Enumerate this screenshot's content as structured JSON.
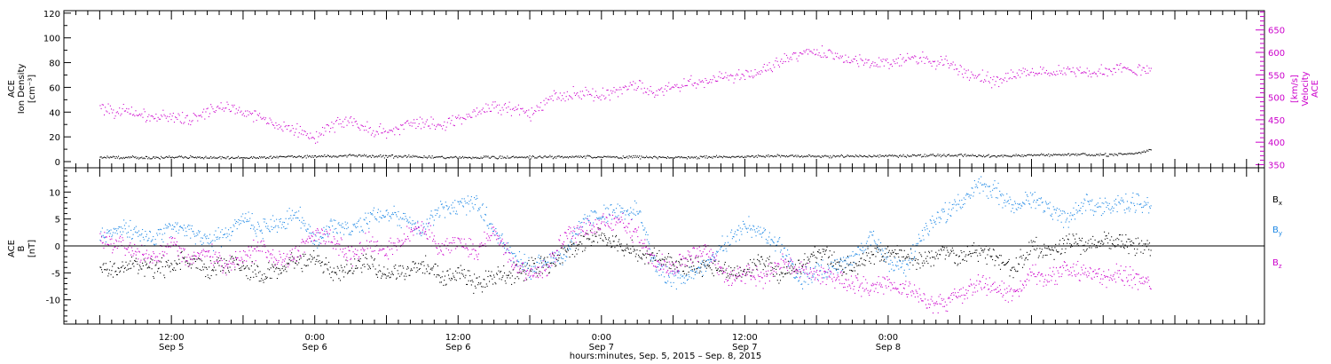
{
  "chart_data": [
    {
      "type": "scatter",
      "ylabel_lines": [
        "ACE",
        "Ion Density",
        "[cm⁻³]"
      ],
      "y2label_lines": [
        "ACE",
        "Velocity",
        "[km/s]"
      ],
      "ylim": [
        -5,
        122
      ],
      "y2lim": [
        343,
        693
      ],
      "yticks": [
        0,
        20,
        40,
        60,
        80,
        100,
        120
      ],
      "y2ticks": [
        350,
        400,
        450,
        500,
        550,
        600,
        650
      ],
      "series": [
        {
          "axis": "right",
          "color": "#cc00cc",
          "points": [
            [
              0,
              480
            ],
            [
              3,
              470
            ],
            [
              6,
              465
            ],
            [
              9,
              455
            ],
            [
              12,
              460
            ],
            [
              15,
              450
            ],
            [
              18,
              470
            ],
            [
              21,
              480
            ],
            [
              24,
              470
            ],
            [
              27,
              455
            ],
            [
              30,
              440
            ],
            [
              33,
              425
            ],
            [
              36,
              410
            ],
            [
              39,
              440
            ],
            [
              42,
              450
            ],
            [
              45,
              430
            ],
            [
              48,
              420
            ],
            [
              51,
              440
            ],
            [
              54,
              445
            ],
            [
              57,
              435
            ],
            [
              60,
              455
            ],
            [
              63,
              470
            ],
            [
              66,
              480
            ],
            [
              69,
              475
            ],
            [
              72,
              465
            ],
            [
              75,
              500
            ],
            [
              78,
              505
            ],
            [
              81,
              510
            ],
            [
              84,
              505
            ],
            [
              87,
              520
            ],
            [
              90,
              530
            ],
            [
              93,
              510
            ],
            [
              96,
              525
            ],
            [
              99,
              535
            ],
            [
              102,
              540
            ],
            [
              105,
              545
            ],
            [
              108,
              550
            ],
            [
              111,
              560
            ],
            [
              114,
              580
            ],
            [
              117,
              600
            ],
            [
              120,
              605
            ],
            [
              123,
              595
            ],
            [
              126,
              580
            ],
            [
              129,
              580
            ],
            [
              132,
              575
            ],
            [
              135,
              590
            ],
            [
              138,
              585
            ],
            [
              141,
              580
            ],
            [
              144,
              560
            ],
            [
              147,
              550
            ],
            [
              150,
              535
            ],
            [
              153,
              550
            ],
            [
              156,
              560
            ],
            [
              159,
              555
            ],
            [
              162,
              565
            ],
            [
              165,
              555
            ],
            [
              168,
              560
            ],
            [
              171,
              565
            ],
            [
              174,
              560
            ],
            [
              176,
              565
            ]
          ]
        },
        {
          "axis": "left",
          "color": "#000000",
          "points": [
            [
              0,
              4
            ],
            [
              6,
              3.5
            ],
            [
              12,
              4
            ],
            [
              18,
              3.8
            ],
            [
              24,
              3.5
            ],
            [
              30,
              4
            ],
            [
              36,
              4.5
            ],
            [
              42,
              5
            ],
            [
              48,
              4.6
            ],
            [
              54,
              4
            ],
            [
              60,
              3.7
            ],
            [
              66,
              3.8
            ],
            [
              72,
              3.9
            ],
            [
              78,
              4.2
            ],
            [
              84,
              4
            ],
            [
              90,
              3.8
            ],
            [
              96,
              3.6
            ],
            [
              102,
              4
            ],
            [
              108,
              4.5
            ],
            [
              114,
              5
            ],
            [
              120,
              4.4
            ],
            [
              126,
              4.8
            ],
            [
              132,
              5
            ],
            [
              138,
              5.2
            ],
            [
              144,
              5.4
            ],
            [
              150,
              4.8
            ],
            [
              156,
              5.6
            ],
            [
              162,
              6
            ],
            [
              168,
              5.5
            ],
            [
              174,
              7.5
            ],
            [
              176,
              10
            ]
          ]
        }
      ]
    },
    {
      "type": "scatter",
      "ylabel_lines": [
        "ACE",
        "B",
        "[nT]"
      ],
      "ylim": [
        -14.5,
        14.5
      ],
      "yticks": [
        -10,
        -5,
        0,
        5,
        10
      ],
      "legend": [
        {
          "label": "B",
          "sub": "x",
          "color": "#000000"
        },
        {
          "label": "B",
          "sub": "y",
          "color": "#1e88e5"
        },
        {
          "label": "B",
          "sub": "z",
          "color": "#cc00cc"
        }
      ],
      "series": [
        {
          "color": "#000000",
          "points": [
            [
              0,
              -4
            ],
            [
              3,
              -4.5
            ],
            [
              6,
              -3
            ],
            [
              9,
              -4
            ],
            [
              12,
              -3.5
            ],
            [
              15,
              -2
            ],
            [
              18,
              -4.5
            ],
            [
              21,
              -3
            ],
            [
              24,
              -4
            ],
            [
              27,
              -5
            ],
            [
              30,
              -4
            ],
            [
              33,
              -3
            ],
            [
              36,
              -2
            ],
            [
              39,
              -5
            ],
            [
              42,
              -4
            ],
            [
              45,
              -3
            ],
            [
              48,
              -5.5
            ],
            [
              51,
              -5
            ],
            [
              54,
              -3
            ],
            [
              57,
              -6
            ],
            [
              60,
              -5
            ],
            [
              63,
              -7
            ],
            [
              66,
              -6
            ],
            [
              69,
              -5
            ],
            [
              72,
              -4
            ],
            [
              75,
              -3.5
            ],
            [
              78,
              -1
            ],
            [
              81,
              1
            ],
            [
              84,
              2
            ],
            [
              87,
              0
            ],
            [
              90,
              -1
            ],
            [
              93,
              -2
            ],
            [
              96,
              -3
            ],
            [
              99,
              -4
            ],
            [
              102,
              -3.5
            ],
            [
              105,
              -5
            ],
            [
              108,
              -4.5
            ],
            [
              111,
              -3
            ],
            [
              114,
              -5
            ],
            [
              117,
              -4
            ],
            [
              120,
              -1
            ],
            [
              123,
              -3
            ],
            [
              126,
              -4
            ],
            [
              129,
              -2
            ],
            [
              132,
              -1
            ],
            [
              135,
              -2
            ],
            [
              138,
              -3
            ],
            [
              141,
              -1
            ],
            [
              144,
              -2
            ],
            [
              147,
              -1
            ],
            [
              150,
              -2
            ],
            [
              153,
              -4
            ],
            [
              156,
              0
            ],
            [
              159,
              -1
            ],
            [
              162,
              1
            ],
            [
              165,
              0
            ],
            [
              168,
              1
            ],
            [
              171,
              0
            ],
            [
              174,
              0.5
            ],
            [
              176,
              0
            ]
          ]
        },
        {
          "color": "#1e88e5",
          "points": [
            [
              0,
              2
            ],
            [
              3,
              3
            ],
            [
              6,
              2.5
            ],
            [
              9,
              1
            ],
            [
              12,
              4
            ],
            [
              15,
              3
            ],
            [
              18,
              1
            ],
            [
              21,
              2
            ],
            [
              24,
              5
            ],
            [
              27,
              3
            ],
            [
              30,
              4
            ],
            [
              33,
              6
            ],
            [
              36,
              1
            ],
            [
              39,
              4
            ],
            [
              42,
              3
            ],
            [
              45,
              5
            ],
            [
              48,
              6
            ],
            [
              51,
              5
            ],
            [
              54,
              3
            ],
            [
              57,
              7
            ],
            [
              60,
              7.5
            ],
            [
              63,
              8
            ],
            [
              66,
              3
            ],
            [
              69,
              -2
            ],
            [
              72,
              -4
            ],
            [
              75,
              -3
            ],
            [
              78,
              -1
            ],
            [
              81,
              5
            ],
            [
              84,
              6
            ],
            [
              87,
              6.5
            ],
            [
              90,
              7
            ],
            [
              93,
              -4
            ],
            [
              96,
              -6
            ],
            [
              99,
              -5
            ],
            [
              102,
              -3
            ],
            [
              105,
              1
            ],
            [
              108,
              4
            ],
            [
              111,
              2
            ],
            [
              114,
              0
            ],
            [
              117,
              -6
            ],
            [
              120,
              -5
            ],
            [
              123,
              -4
            ],
            [
              126,
              -2
            ],
            [
              129,
              2
            ],
            [
              132,
              -3
            ],
            [
              135,
              -4
            ],
            [
              138,
              3
            ],
            [
              141,
              6
            ],
            [
              144,
              8
            ],
            [
              147,
              12
            ],
            [
              150,
              10
            ],
            [
              153,
              7
            ],
            [
              156,
              9
            ],
            [
              159,
              7
            ],
            [
              162,
              5
            ],
            [
              165,
              8
            ],
            [
              168,
              7.5
            ],
            [
              171,
              8
            ],
            [
              174,
              8
            ],
            [
              176,
              7.5
            ]
          ]
        },
        {
          "color": "#cc00cc",
          "points": [
            [
              0,
              2
            ],
            [
              3,
              0
            ],
            [
              6,
              -1
            ],
            [
              9,
              -2
            ],
            [
              12,
              1
            ],
            [
              15,
              -3
            ],
            [
              18,
              -1
            ],
            [
              21,
              -4
            ],
            [
              24,
              -2
            ],
            [
              27,
              0
            ],
            [
              30,
              -3
            ],
            [
              33,
              -1
            ],
            [
              36,
              3
            ],
            [
              39,
              1
            ],
            [
              42,
              -2
            ],
            [
              45,
              1
            ],
            [
              48,
              -1
            ],
            [
              51,
              2
            ],
            [
              54,
              4
            ],
            [
              57,
              -1
            ],
            [
              60,
              1
            ],
            [
              63,
              -1
            ],
            [
              66,
              3
            ],
            [
              69,
              -3
            ],
            [
              72,
              -5
            ],
            [
              75,
              -4
            ],
            [
              78,
              2
            ],
            [
              81,
              3
            ],
            [
              84,
              4
            ],
            [
              87,
              5
            ],
            [
              90,
              2
            ],
            [
              93,
              -3
            ],
            [
              96,
              -4
            ],
            [
              99,
              -2
            ],
            [
              102,
              -1
            ],
            [
              105,
              -6
            ],
            [
              108,
              -5
            ],
            [
              111,
              -6
            ],
            [
              114,
              -3
            ],
            [
              117,
              -4
            ],
            [
              120,
              -5
            ],
            [
              123,
              -6
            ],
            [
              126,
              -7
            ],
            [
              129,
              -8
            ],
            [
              132,
              -7
            ],
            [
              135,
              -8
            ],
            [
              138,
              -10
            ],
            [
              141,
              -11
            ],
            [
              144,
              -9
            ],
            [
              147,
              -7
            ],
            [
              150,
              -8
            ],
            [
              153,
              -9
            ],
            [
              156,
              -5
            ],
            [
              159,
              -6
            ],
            [
              162,
              -4
            ],
            [
              165,
              -5
            ],
            [
              168,
              -6
            ],
            [
              171,
              -5
            ],
            [
              174,
              -6
            ],
            [
              176,
              -6.5
            ]
          ]
        }
      ]
    }
  ],
  "x_axis": {
    "range_hours": [
      -6,
      195
    ],
    "major_ticks": [
      {
        "h": 12,
        "time": "12:00",
        "date": "Sep 5"
      },
      {
        "h": 36,
        "time": "0:00",
        "date": "Sep 6"
      },
      {
        "h": 60,
        "time": "12:00",
        "date": "Sep 6"
      },
      {
        "h": 84,
        "time": "0:00",
        "date": "Sep 7"
      },
      {
        "h": 108,
        "time": "12:00",
        "date": "Sep 7"
      },
      {
        "h": 132,
        "time": "0:00",
        "date": "Sep 8"
      }
    ],
    "xlabel": "hours:minutes, Sep.  5, 2015 – Sep.  8, 2015"
  }
}
